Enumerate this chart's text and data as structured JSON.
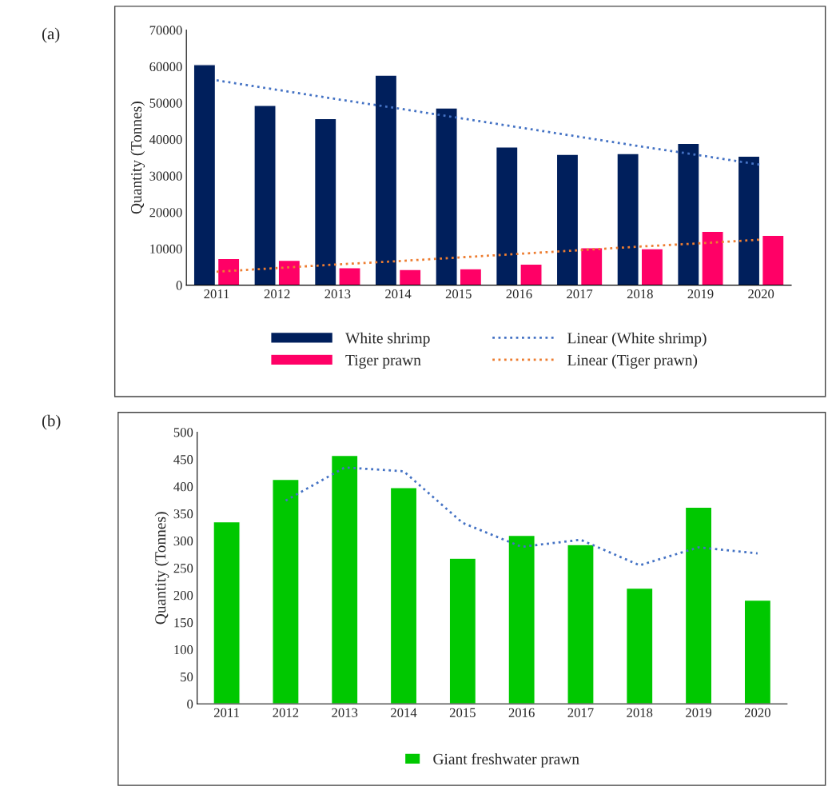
{
  "chart_data": [
    {
      "type": "bar",
      "ylabel": "Quantity (Tonnes)",
      "annotations": [
        "(a)"
      ],
      "categories": [
        "2011",
        "2012",
        "2013",
        "2014",
        "2015",
        "2016",
        "2017",
        "2018",
        "2019",
        "2020"
      ],
      "series": [
        {
          "name": "White shrimp",
          "color": "#001f5c",
          "values": [
            60500,
            49300,
            45700,
            57600,
            48600,
            37900,
            35900,
            36100,
            38900,
            35400
          ]
        },
        {
          "name": "Tiger prawn",
          "color": "#ff0066",
          "values": [
            7300,
            6800,
            4800,
            4300,
            4500,
            5800,
            10300,
            10000,
            14800,
            13700
          ]
        },
        {
          "name": "Linear (White shrimp)",
          "type": "line",
          "line_style": "dotted",
          "color": "#4472c4",
          "values": [
            56200,
            53600,
            51000,
            48500,
            45900,
            43300,
            40700,
            38100,
            35600,
            33000
          ]
        },
        {
          "name": "Linear (Tiger prawn)",
          "type": "line",
          "line_style": "dotted",
          "color": "#ed7d31",
          "values": [
            3700,
            4700,
            5700,
            6600,
            7600,
            8600,
            9600,
            10600,
            11500,
            12500
          ]
        }
      ],
      "ylim": [
        0,
        70000
      ],
      "yticks": [
        0,
        10000,
        20000,
        30000,
        40000,
        50000,
        60000,
        70000
      ],
      "grid": false,
      "legend": "bottom"
    },
    {
      "type": "bar",
      "ylabel": "Quantity (Tonnes)",
      "annotations": [
        "(b)"
      ],
      "categories": [
        "2011",
        "2012",
        "2013",
        "2014",
        "2015",
        "2016",
        "2017",
        "2018",
        "2019",
        "2020"
      ],
      "series": [
        {
          "name": "Giant freshwater prawn",
          "color": "#00c800",
          "values": [
            335,
            413,
            457,
            398,
            268,
            310,
            293,
            213,
            362,
            191
          ]
        },
        {
          "type": "line",
          "line_style": "dotted",
          "color": "#4472c4",
          "values": [
            null,
            374,
            435,
            428,
            333,
            289,
            302,
            255,
            288,
            277
          ]
        }
      ],
      "ylim": [
        0,
        500
      ],
      "yticks": [
        0,
        50,
        100,
        150,
        200,
        250,
        300,
        350,
        400,
        450,
        500
      ],
      "grid": false,
      "legend": "bottom"
    }
  ]
}
